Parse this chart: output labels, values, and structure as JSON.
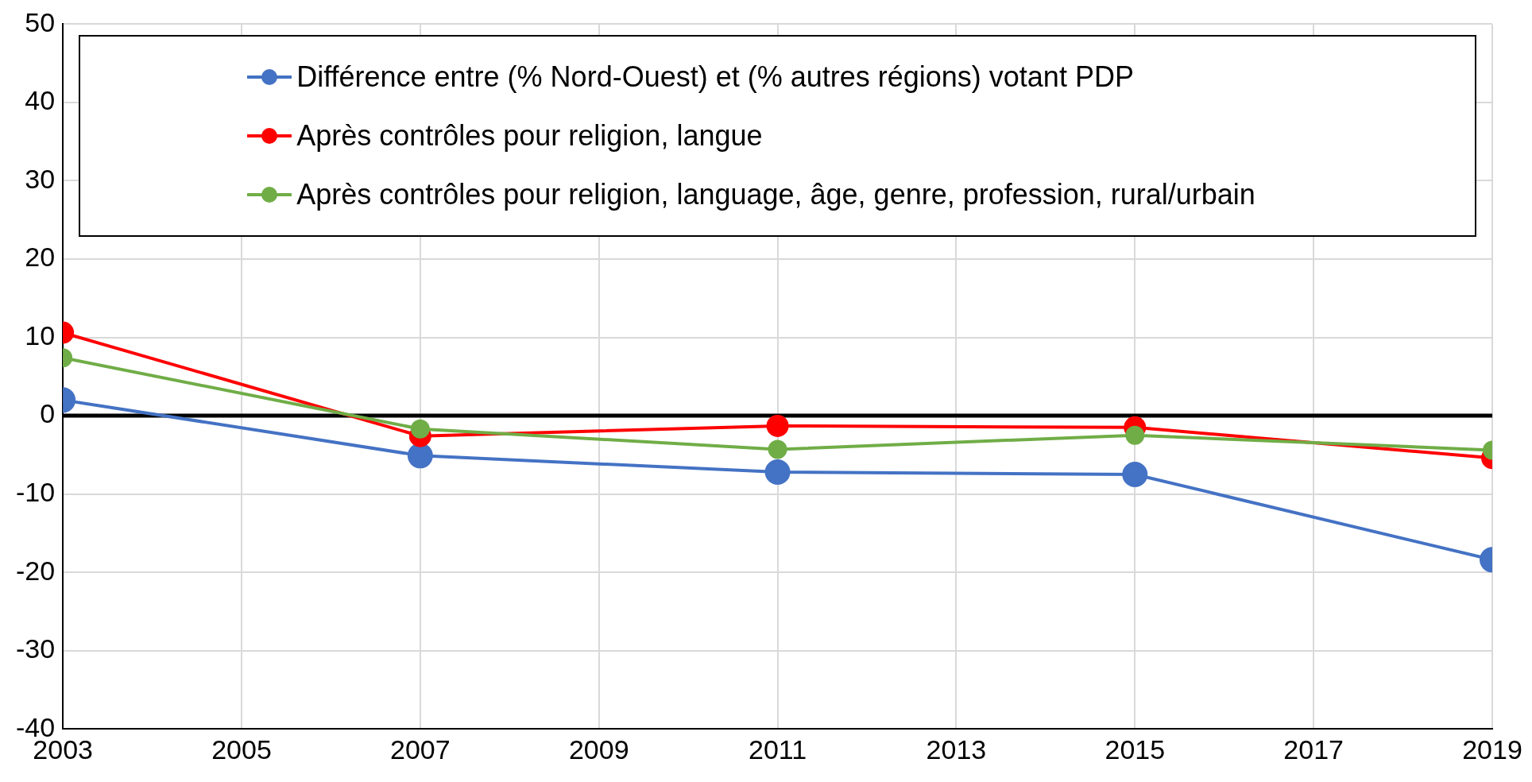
{
  "chart_data": {
    "type": "line",
    "x": [
      2003,
      2007,
      2011,
      2015,
      2019
    ],
    "series": [
      {
        "name": "Différence entre (% Nord-Ouest) et (% autres régions) votant PDP",
        "color": "#4472c4",
        "values": [
          2.0,
          -5.1,
          -7.2,
          -7.5,
          -18.4
        ]
      },
      {
        "name": "Après contrôles pour religion, langue",
        "color": "#ff0000",
        "values": [
          10.6,
          -2.6,
          -1.3,
          -1.5,
          -5.4
        ]
      },
      {
        "name": "Après contrôles pour religion, language, âge, genre, profession, rural/urbain",
        "color": "#70ad47",
        "values": [
          7.4,
          -1.7,
          -4.3,
          -2.5,
          -4.4
        ]
      }
    ],
    "xlim": [
      2003,
      2019
    ],
    "xticks": [
      2003,
      2005,
      2007,
      2009,
      2011,
      2013,
      2015,
      2017,
      2019
    ],
    "ylim": [
      -40,
      50
    ],
    "yticks": [
      -40,
      -30,
      -20,
      -10,
      0,
      10,
      20,
      30,
      40,
      50
    ],
    "ref_lines": [
      {
        "axis": "y",
        "value": 0,
        "color": "#000000"
      }
    ],
    "grid": true,
    "legend": "top",
    "marker": "circle",
    "line_style": "solid"
  }
}
